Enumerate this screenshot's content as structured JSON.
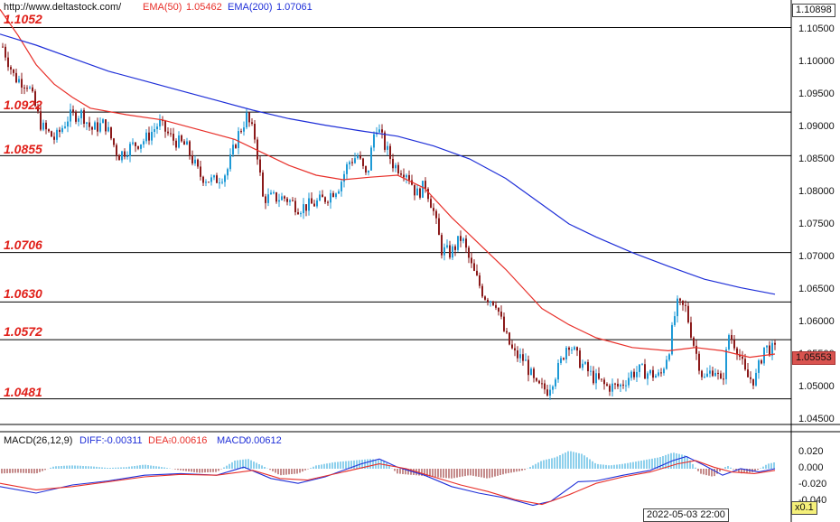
{
  "header": {
    "site": "http://www.deltastock.com/",
    "ema50_label": "EMA(50)",
    "ema50_value": "1.05462",
    "ema200_label": "EMA(200)",
    "ema200_value": "1.07061"
  },
  "colors": {
    "ema50": "#e8302a",
    "ema200": "#1f2fd8",
    "up_candle": "#1e9ad6",
    "down_candle": "#8b1a1a",
    "level_label": "#e0201a",
    "macd_pos": "#1ea0d8",
    "macd_neg": "#8b1a1a",
    "price_box": "#d9534f"
  },
  "chart_data": [
    {
      "type": "candlestick",
      "instrument_note": "EUR/USD style price chart with support/resistance levels",
      "y_range": [
        1.0435,
        1.1103
      ],
      "price_ticks": [
        "1.10500",
        "1.10000",
        "1.09500",
        "1.09000",
        "1.08500",
        "1.08000",
        "1.07500",
        "1.07000",
        "1.06500",
        "1.06000",
        "1.05500",
        "1.05000",
        "1.04500"
      ],
      "levels": [
        "1.1052",
        "1.0922",
        "1.0855",
        "1.0706",
        "1.0630",
        "1.0572",
        "1.0481"
      ],
      "current_price": "1.05553",
      "top_price_box": "1.10898",
      "series": [
        {
          "name": "EMA(50)",
          "points": [
            [
              0,
              1.108
            ],
            [
              20,
              1.104
            ],
            [
              40,
              1.0995
            ],
            [
              60,
              1.0965
            ],
            [
              80,
              1.0945
            ],
            [
              100,
              1.0928
            ],
            [
              140,
              1.0918
            ],
            [
              180,
              1.091
            ],
            [
              220,
              1.0895
            ],
            [
              260,
              1.088
            ],
            [
              290,
              1.086
            ],
            [
              320,
              1.084
            ],
            [
              350,
              1.0825
            ],
            [
              380,
              1.0818
            ],
            [
              410,
              1.0822
            ],
            [
              440,
              1.0825
            ],
            [
              470,
              1.0805
            ],
            [
              500,
              1.076
            ],
            [
              530,
              1.072
            ],
            [
              560,
              1.068
            ],
            [
              580,
              1.065
            ],
            [
              600,
              1.062
            ],
            [
              630,
              1.0595
            ],
            [
              660,
              1.0575
            ],
            [
              700,
              1.056
            ],
            [
              740,
              1.0555
            ],
            [
              770,
              1.056
            ],
            [
              800,
              1.0555
            ],
            [
              830,
              1.0545
            ],
            [
              858,
              1.055
            ]
          ]
        },
        {
          "name": "EMA(200)",
          "points": [
            [
              0,
              1.1042
            ],
            [
              40,
              1.1025
            ],
            [
              80,
              1.1005
            ],
            [
              120,
              1.0985
            ],
            [
              160,
              1.097
            ],
            [
              200,
              1.0955
            ],
            [
              240,
              1.094
            ],
            [
              280,
              1.0925
            ],
            [
              320,
              1.0912
            ],
            [
              360,
              1.0902
            ],
            [
              400,
              1.0893
            ],
            [
              440,
              1.0885
            ],
            [
              480,
              1.087
            ],
            [
              520,
              1.085
            ],
            [
              560,
              1.082
            ],
            [
              600,
              1.078
            ],
            [
              630,
              1.075
            ],
            [
              660,
              1.073
            ],
            [
              700,
              1.0706
            ],
            [
              740,
              1.0685
            ],
            [
              780,
              1.0665
            ],
            [
              820,
              1.0652
            ],
            [
              858,
              1.0642
            ]
          ]
        }
      ],
      "price_path": [
        [
          0,
          1.103
        ],
        [
          15,
          1.0975
        ],
        [
          30,
          1.0965
        ],
        [
          45,
          1.09
        ],
        [
          60,
          1.088
        ],
        [
          75,
          1.0915
        ],
        [
          90,
          1.092
        ],
        [
          100,
          1.0895
        ],
        [
          115,
          1.0905
        ],
        [
          130,
          1.0855
        ],
        [
          145,
          1.087
        ],
        [
          160,
          1.088
        ],
        [
          175,
          1.0905
        ],
        [
          190,
          1.088
        ],
        [
          205,
          1.087
        ],
        [
          220,
          1.0825
        ],
        [
          235,
          1.0815
        ],
        [
          250,
          1.083
        ],
        [
          262,
          1.0885
        ],
        [
          272,
          1.0915
        ],
        [
          282,
          1.088
        ],
        [
          290,
          1.079
        ],
        [
          300,
          1.079
        ],
        [
          315,
          1.079
        ],
        [
          330,
          1.0775
        ],
        [
          345,
          1.078
        ],
        [
          360,
          1.079
        ],
        [
          375,
          1.081
        ],
        [
          385,
          1.0845
        ],
        [
          395,
          1.0855
        ],
        [
          405,
          1.082
        ],
        [
          415,
          1.0905
        ],
        [
          425,
          1.087
        ],
        [
          435,
          1.084
        ],
        [
          450,
          1.083
        ],
        [
          460,
          1.0795
        ],
        [
          470,
          1.081
        ],
        [
          478,
          1.0775
        ],
        [
          488,
          1.071
        ],
        [
          498,
          1.0705
        ],
        [
          510,
          1.073
        ],
        [
          522,
          1.068
        ],
        [
          535,
          1.064
        ],
        [
          548,
          1.063
        ],
        [
          558,
          1.058
        ],
        [
          568,
          1.055
        ],
        [
          580,
          1.054
        ],
        [
          592,
          1.05
        ],
        [
          605,
          1.0495
        ],
        [
          618,
          1.053
        ],
        [
          628,
          1.057
        ],
        [
          640,
          1.054
        ],
        [
          655,
          1.0515
        ],
        [
          670,
          1.05
        ],
        [
          685,
          1.05
        ],
        [
          698,
          1.052
        ],
        [
          708,
          1.0525
        ],
        [
          718,
          1.052
        ],
        [
          730,
          1.0515
        ],
        [
          740,
          1.056
        ],
        [
          748,
          1.0625
        ],
        [
          758,
          1.062
        ],
        [
          768,
          1.056
        ],
        [
          778,
          1.051
        ],
        [
          790,
          1.053
        ],
        [
          798,
          1.05
        ],
        [
          806,
          1.058
        ],
        [
          815,
          1.056
        ],
        [
          825,
          1.0515
        ],
        [
          835,
          1.051
        ],
        [
          845,
          1.056
        ],
        [
          858,
          1.0555
        ]
      ]
    },
    {
      "type": "bar",
      "name": "MACD",
      "label": "MACD(26,12,9)",
      "diff_label": "DIFF:",
      "diff_value": "-0.00311",
      "dea_label": "DEA:",
      "dea_value": "-0.00616",
      "macd_label": "MACD:",
      "macd_value": "0.00612",
      "y_range": [
        -0.046,
        0.026
      ],
      "ticks": [
        "0.020",
        "0.000",
        "-0.020",
        "-0.040"
      ],
      "series": [
        {
          "name": "DIFF",
          "points": [
            [
              0,
              -0.022
            ],
            [
              40,
              -0.03
            ],
            [
              80,
              -0.02
            ],
            [
              120,
              -0.015
            ],
            [
              160,
              -0.008
            ],
            [
              200,
              -0.006
            ],
            [
              240,
              -0.008
            ],
            [
              270,
              0.002
            ],
            [
              300,
              -0.012
            ],
            [
              330,
              -0.018
            ],
            [
              360,
              -0.01
            ],
            [
              400,
              0.006
            ],
            [
              420,
              0.012
            ],
            [
              440,
              0.002
            ],
            [
              470,
              -0.008
            ],
            [
              500,
              -0.022
            ],
            [
              530,
              -0.03
            ],
            [
              560,
              -0.036
            ],
            [
              590,
              -0.045
            ],
            [
              610,
              -0.04
            ],
            [
              640,
              -0.016
            ],
            [
              660,
              -0.015
            ],
            [
              690,
              -0.008
            ],
            [
              720,
              -0.002
            ],
            [
              745,
              0.01
            ],
            [
              760,
              0.015
            ],
            [
              780,
              0.004
            ],
            [
              800,
              -0.008
            ],
            [
              820,
              0.0
            ],
            [
              840,
              -0.004
            ],
            [
              858,
              0.0
            ]
          ]
        },
        {
          "name": "DEA",
          "points": [
            [
              0,
              -0.018
            ],
            [
              40,
              -0.026
            ],
            [
              80,
              -0.022
            ],
            [
              120,
              -0.016
            ],
            [
              160,
              -0.01
            ],
            [
              200,
              -0.007
            ],
            [
              240,
              -0.008
            ],
            [
              280,
              -0.002
            ],
            [
              310,
              -0.012
            ],
            [
              340,
              -0.014
            ],
            [
              380,
              -0.004
            ],
            [
              420,
              0.006
            ],
            [
              450,
              0.0
            ],
            [
              480,
              -0.01
            ],
            [
              510,
              -0.02
            ],
            [
              540,
              -0.028
            ],
            [
              570,
              -0.038
            ],
            [
              600,
              -0.044
            ],
            [
              630,
              -0.032
            ],
            [
              660,
              -0.018
            ],
            [
              690,
              -0.01
            ],
            [
              720,
              -0.004
            ],
            [
              750,
              0.006
            ],
            [
              770,
              0.01
            ],
            [
              790,
              0.002
            ],
            [
              810,
              -0.004
            ],
            [
              835,
              -0.006
            ],
            [
              858,
              -0.002
            ]
          ]
        }
      ],
      "histogram": [
        [
          0,
          -0.006
        ],
        [
          20,
          -0.005
        ],
        [
          40,
          -0.006
        ],
        [
          60,
          0.003
        ],
        [
          80,
          0.004
        ],
        [
          100,
          0.003
        ],
        [
          120,
          0.001
        ],
        [
          140,
          0.002
        ],
        [
          160,
          0.005
        ],
        [
          180,
          0.002
        ],
        [
          200,
          -0.002
        ],
        [
          220,
          -0.005
        ],
        [
          240,
          -0.004
        ],
        [
          260,
          0.01
        ],
        [
          275,
          0.012
        ],
        [
          290,
          0.004
        ],
        [
          310,
          -0.008
        ],
        [
          330,
          -0.006
        ],
        [
          350,
          0.004
        ],
        [
          370,
          0.008
        ],
        [
          390,
          0.01
        ],
        [
          410,
          0.012
        ],
        [
          425,
          0.01
        ],
        [
          440,
          -0.006
        ],
        [
          460,
          -0.008
        ],
        [
          480,
          -0.01
        ],
        [
          500,
          -0.012
        ],
        [
          520,
          -0.008
        ],
        [
          540,
          -0.012
        ],
        [
          560,
          -0.006
        ],
        [
          580,
          -0.002
        ],
        [
          600,
          0.01
        ],
        [
          615,
          0.014
        ],
        [
          630,
          0.022
        ],
        [
          645,
          0.018
        ],
        [
          660,
          0.006
        ],
        [
          675,
          0.004
        ],
        [
          690,
          0.006
        ],
        [
          710,
          0.01
        ],
        [
          730,
          0.014
        ],
        [
          745,
          0.02
        ],
        [
          760,
          0.016
        ],
        [
          775,
          -0.006
        ],
        [
          790,
          -0.01
        ],
        [
          805,
          0.004
        ],
        [
          820,
          -0.006
        ],
        [
          835,
          -0.004
        ],
        [
          850,
          0.006
        ],
        [
          858,
          0.008
        ]
      ]
    }
  ],
  "footer": {
    "datetime": "2022-05-03 22:00",
    "zoom": "x0.1"
  }
}
